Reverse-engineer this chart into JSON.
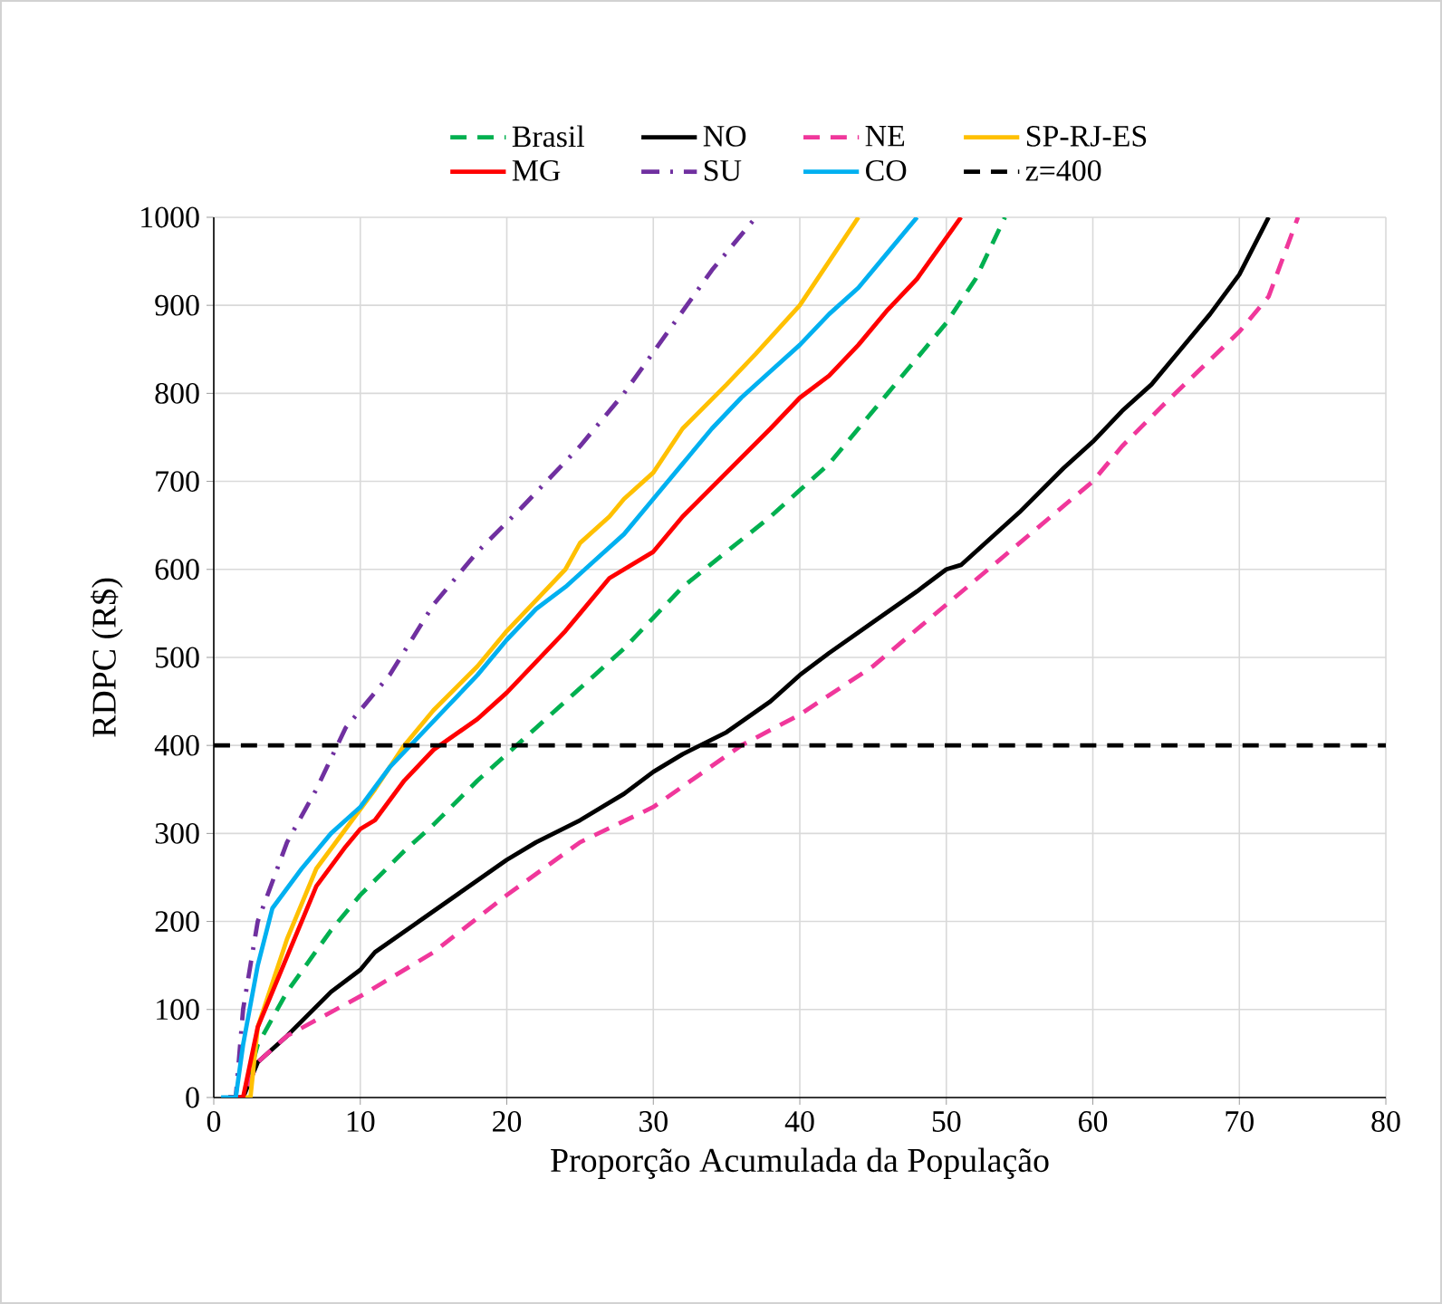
{
  "chart_data": {
    "type": "line",
    "xlabel": "Proporção Acumulada da População",
    "ylabel": "RDPC (R$)",
    "xlim": [
      0,
      80
    ],
    "ylim": [
      0,
      1000
    ],
    "xticks": [
      0,
      10,
      20,
      30,
      40,
      50,
      60,
      70,
      80
    ],
    "yticks": [
      0,
      100,
      200,
      300,
      400,
      500,
      600,
      700,
      800,
      900,
      1000
    ],
    "grid": true,
    "legend": "top",
    "series": [
      {
        "name": "Brasil",
        "color": "#00b050",
        "line_style": "dashed",
        "x": [
          1,
          2,
          3,
          5,
          8,
          10,
          13,
          15,
          18,
          20,
          22,
          24,
          26,
          28,
          30,
          32,
          35,
          38,
          40,
          42,
          44,
          46,
          48,
          50,
          52,
          54
        ],
        "values": [
          0,
          0,
          60,
          120,
          190,
          230,
          280,
          310,
          360,
          390,
          420,
          450,
          480,
          510,
          545,
          580,
          620,
          660,
          690,
          720,
          760,
          800,
          840,
          880,
          930,
          1000
        ]
      },
      {
        "name": "NO",
        "color": "#000000",
        "line_style": "solid",
        "x": [
          1,
          2,
          3,
          5,
          8,
          10,
          11,
          14,
          17,
          20,
          22,
          25,
          28,
          30,
          32,
          35,
          38,
          40,
          42,
          45,
          48,
          50,
          51,
          53,
          55,
          58,
          60,
          62,
          64,
          66,
          68,
          70,
          72
        ],
        "values": [
          0,
          0,
          40,
          70,
          120,
          145,
          165,
          200,
          235,
          270,
          290,
          315,
          345,
          370,
          390,
          415,
          450,
          480,
          505,
          540,
          575,
          600,
          605,
          635,
          665,
          715,
          745,
          780,
          810,
          850,
          890,
          935,
          1000
        ]
      },
      {
        "name": "NE",
        "color": "#f0379b",
        "line_style": "dashed",
        "x": [
          1,
          2,
          3,
          5,
          10,
          15,
          20,
          25,
          30,
          33,
          36,
          40,
          45,
          50,
          55,
          60,
          62,
          65,
          70,
          72,
          74
        ],
        "values": [
          0,
          0,
          40,
          70,
          115,
          165,
          230,
          290,
          330,
          365,
          400,
          435,
          490,
          560,
          630,
          700,
          740,
          790,
          870,
          910,
          1000
        ]
      },
      {
        "name": "SP-RJ-ES",
        "color": "#ffc000",
        "line_style": "solid",
        "x": [
          2,
          2.5,
          3,
          5,
          7,
          9,
          11,
          13,
          15,
          18,
          20,
          22,
          24,
          25,
          27,
          28,
          30,
          32,
          35,
          37,
          40,
          42,
          44
        ],
        "values": [
          0,
          0,
          80,
          180,
          260,
          305,
          350,
          400,
          440,
          490,
          530,
          565,
          600,
          630,
          660,
          680,
          710,
          760,
          810,
          845,
          900,
          950,
          1000
        ]
      },
      {
        "name": "MG",
        "color": "#ff0000",
        "line_style": "solid",
        "x": [
          1,
          2,
          3,
          5,
          7,
          9,
          10,
          11,
          13,
          15,
          18,
          20,
          22,
          24,
          25,
          27,
          30,
          32,
          35,
          38,
          40,
          42,
          44,
          46,
          48,
          51
        ],
        "values": [
          0,
          0,
          80,
          160,
          240,
          285,
          305,
          315,
          360,
          395,
          430,
          460,
          495,
          530,
          550,
          590,
          620,
          660,
          710,
          760,
          795,
          820,
          855,
          895,
          930,
          1000
        ]
      },
      {
        "name": "SU",
        "color": "#7030a0",
        "line_style": "dashdot",
        "x": [
          1,
          1.5,
          2,
          3,
          5,
          7,
          9,
          12,
          15,
          18,
          21,
          25,
          28,
          31,
          34,
          37
        ],
        "values": [
          0,
          0,
          100,
          200,
          290,
          350,
          420,
          480,
          560,
          620,
          670,
          740,
          800,
          870,
          940,
          1000
        ]
      },
      {
        "name": "CO",
        "color": "#00b0f0",
        "line_style": "solid",
        "x": [
          0.5,
          1.5,
          2,
          3,
          4,
          6,
          8,
          9,
          10,
          12,
          14,
          16,
          18,
          20,
          22,
          24,
          26,
          28,
          30,
          32,
          34,
          36,
          38,
          40,
          42,
          44,
          46,
          48
        ],
        "values": [
          0,
          0,
          60,
          150,
          215,
          260,
          300,
          315,
          330,
          375,
          410,
          445,
          480,
          520,
          555,
          580,
          610,
          640,
          680,
          720,
          760,
          795,
          825,
          855,
          890,
          920,
          960,
          1000
        ]
      },
      {
        "name": "z=400",
        "color": "#000000",
        "line_style": "dashed",
        "x": [
          0,
          80
        ],
        "values": [
          400,
          400
        ]
      }
    ]
  }
}
